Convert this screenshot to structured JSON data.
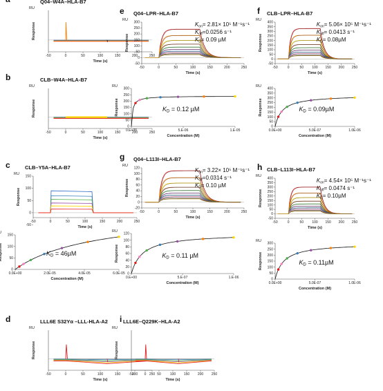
{
  "figure": {
    "panels": [
      {
        "id": "a",
        "label": "a",
        "title": "Q04–W4A–HLA-B7",
        "type": "sensorgram",
        "kind": "flat-spike",
        "x": [
          70,
          15,
          150,
          60
        ],
        "plot": [
          -50,
          0,
          250,
          0,
          -20,
          50
        ],
        "xticks": [
          -50,
          0,
          50,
          100,
          150,
          200,
          250
        ],
        "yticks": [],
        "xlabel": "Time (s)",
        "ylabel": "Response",
        "ru": "RU"
      },
      {
        "id": "b",
        "label": "b",
        "title": "CLB–W4A–HLA-B7",
        "type": "sensorgram",
        "kind": "flat",
        "x": [
          70,
          128,
          150,
          58
        ],
        "plot": [
          -50,
          0,
          250,
          0,
          -20,
          50
        ],
        "xticks": [
          -50,
          0,
          50,
          100,
          150,
          200,
          250
        ],
        "yticks": [],
        "xlabel": "Time (s)",
        "ylabel": "Response",
        "ru": "RU"
      },
      {
        "id": "c1",
        "label": "c",
        "title": "CLB–Y5A–HLA-B7",
        "type": "sensorgram",
        "kind": "blue-binding",
        "x": [
          48,
          255,
          150,
          60
        ],
        "plot": [
          -50,
          0,
          250,
          0,
          -20,
          150
        ],
        "xticks": [
          -50,
          0,
          50,
          100,
          150,
          200,
          250
        ],
        "yticks": [
          -50,
          0,
          50,
          100,
          150
        ],
        "xlabel": "Time (s)",
        "ylabel": "Response",
        "ru": "RU"
      },
      {
        "id": "c2",
        "type": "isotherm",
        "x": [
          22,
          340,
          150,
          50
        ],
        "plot": [
          0,
          0,
          6e-05,
          0,
          0,
          150
        ],
        "xticks": [
          0,
          2e-05,
          4e-05,
          6e-05
        ],
        "xticklabels": [
          "0.0E+00",
          "2.0E-05",
          "4.0E-05",
          "6.0E-05"
        ],
        "yticks": [
          0,
          50,
          100,
          150
        ],
        "kd_label": "K",
        "kd_sub": "D",
        "kd_text": "= 46µM",
        "kd_value": 4.6e-05,
        "rmax": 250,
        "xlabel": "Concentration (M)",
        "ylabel": "Response",
        "ru": "RU"
      },
      {
        "id": "d",
        "label": "d",
        "title": "LLL6E S32Yα –LLL-HLA-A2",
        "type": "sensorgram",
        "kind": "flat-red",
        "x": [
          70,
          478,
          150,
          58
        ],
        "plot": [
          -50,
          0,
          250,
          0,
          -20,
          50
        ],
        "xticks": [
          -50,
          0,
          50,
          100,
          150,
          200,
          250
        ],
        "yticks": [],
        "xlabel": "Time (s)",
        "ylabel": "Response",
        "ru": "RU"
      },
      {
        "id": "e1",
        "label": "e",
        "title": "Q04–LPR–HLA-B7",
        "type": "sensorgram",
        "kind": "family",
        "x": [
          205,
          32,
          148,
          60
        ],
        "plot": [
          -50,
          0,
          250,
          0,
          -50,
          300
        ],
        "xticks": [
          -50,
          0,
          50,
          100,
          150,
          200,
          250
        ],
        "yticks": [
          -50,
          0,
          50,
          100,
          150,
          200,
          250,
          300
        ],
        "max": 240,
        "xlabel": "Time (s)",
        "ylabel": "Response",
        "ru": "RU",
        "kon_label": "K",
        "kon_sub": "on",
        "kon": "= 2.81× 10⁵ M⁻¹s⁻¹",
        "koff_label": "K",
        "koff_sub": "off",
        "koff": "=0.0256 s⁻¹",
        "kd_label": "K",
        "kd_sub": "D",
        "kd": "= 0.09 µM"
      },
      {
        "id": "e2",
        "type": "isotherm",
        "x": [
          190,
          128,
          150,
          55
        ],
        "plot": [
          0,
          0,
          1e-05,
          0,
          0,
          300
        ],
        "xticks": [
          0,
          5e-06,
          1e-05
        ],
        "xticklabels": [
          "0.E+00",
          "5.E-06",
          "1.E-05"
        ],
        "yticks": [
          0,
          50,
          100,
          150,
          200,
          250,
          300
        ],
        "kd_label": "K",
        "kd_sub": "D",
        "kd_text": "= 0.12 µM",
        "kd_value": 1.2e-07,
        "rmax": 240,
        "xlabel": "Concentration (M)",
        "ylabel": "Response",
        "ru": "RU"
      },
      {
        "id": "f1",
        "label": "f",
        "title": "CLB–LPR–HLA-B7",
        "type": "sensorgram",
        "kind": "family",
        "x": [
          398,
          32,
          115,
          60
        ],
        "plot": [
          -50,
          0,
          250,
          0,
          -50,
          400
        ],
        "xticks": [
          -50,
          0,
          50,
          100,
          150,
          200,
          250
        ],
        "yticks": [
          -50,
          0,
          50,
          100,
          150,
          200,
          250,
          300,
          350,
          400
        ],
        "max": 330,
        "xlabel": "Time (s)",
        "ylabel": "Response",
        "ru": "RU",
        "kon_label": "K",
        "kon_sub": "on",
        "kon": "= 5.06× 10⁵ M⁻¹s⁻¹",
        "koff_label": "K",
        "koff_sub": "off",
        "koff": "= 0.0413 s⁻¹",
        "kd_label": "K",
        "kd_sub": "D",
        "kd": "= 0.08µM"
      },
      {
        "id": "f2",
        "type": "isotherm",
        "x": [
          398,
          128,
          115,
          55
        ],
        "plot": [
          0,
          0,
          1e-06,
          0,
          0,
          400
        ],
        "xticks": [
          0,
          5e-07,
          1e-06
        ],
        "xticklabels": [
          "0.0E+00",
          "5.0E-07",
          "1.0E-06"
        ],
        "yticks": [
          0,
          50,
          100,
          150,
          200,
          250,
          300,
          350,
          400
        ],
        "kd_label": "K",
        "kd_sub": "D",
        "kd_text": "= 0.09µM",
        "kd_value": 9e-08,
        "rmax": 330,
        "xlabel": "Concentration (M)",
        "ylabel": "Response",
        "ru": "RU"
      },
      {
        "id": "g1",
        "label": "g",
        "title": "Q04–L113I–HLA-B7",
        "type": "sensorgram",
        "kind": "family",
        "x": [
          205,
          243,
          148,
          58
        ],
        "plot": [
          -50,
          0,
          250,
          0,
          -20,
          120
        ],
        "xticks": [
          -50,
          0,
          50,
          100,
          150,
          200,
          250
        ],
        "yticks": [
          -20,
          0,
          20,
          40,
          60,
          80,
          100,
          120
        ],
        "max": 110,
        "xlabel": "Time (s)",
        "ylabel": "Response",
        "ru": "RU",
        "kon_label": "K",
        "kon_sub": "on",
        "kon": "= 3.22× 10⁵ M⁻¹s⁻¹",
        "koff_label": "K",
        "koff_sub": "off",
        "koff": "=0.0314 s⁻¹",
        "kd_label": "K",
        "kd_sub": "D",
        "kd": "= 0.10 µM"
      },
      {
        "id": "g2",
        "type": "isotherm",
        "x": [
          190,
          338,
          148,
          58
        ],
        "plot": [
          0,
          0,
          1e-06,
          0,
          0,
          120
        ],
        "xticks": [
          0,
          5e-07,
          1e-06
        ],
        "xticklabels": [
          "0.E+00",
          "5.E-07",
          "1.E-06"
        ],
        "yticks": [
          0,
          20,
          40,
          60,
          80,
          100,
          120
        ],
        "kd_label": "K",
        "kd_sub": "D",
        "kd_text": "= 0.11 µM",
        "kd_value": 1.1e-07,
        "rmax": 120,
        "xlabel": "Concentration (M)",
        "ylabel": "Response",
        "ru": "RU"
      },
      {
        "id": "h1",
        "label": "h",
        "title": "CLB–L113I–HLA-B7",
        "type": "sensorgram",
        "kind": "family",
        "x": [
          398,
          258,
          115,
          58
        ],
        "plot": [
          -50,
          0,
          250,
          0,
          -50,
          400
        ],
        "xticks": [
          -50,
          0,
          50,
          100,
          150,
          200,
          250
        ],
        "yticks": [
          -50,
          0,
          50,
          100,
          150,
          200,
          250,
          300,
          350,
          400
        ],
        "max": 300,
        "xlabel": "Time (s)",
        "ylabel": "Response",
        "ru": "RU",
        "kon_label": "K",
        "kon_sub": "on",
        "kon": "= 4.54× 10⁵ M⁻¹s⁻¹",
        "koff_label": "K",
        "koff_sub": "off",
        "koff": "= 0.0474 s⁻¹",
        "kd_label": "K",
        "kd_sub": "D",
        "kd": "= 0.10µM"
      },
      {
        "id": "h2",
        "type": "isotherm",
        "x": [
          398,
          352,
          115,
          52
        ],
        "plot": [
          0,
          0,
          1e-06,
          0,
          0,
          300
        ],
        "xticks": [
          0,
          5e-07,
          1e-06
        ],
        "xticklabels": [
          "0.0E+00",
          "5.0E-07",
          "1.0E-06"
        ],
        "yticks": [
          0,
          50,
          100,
          150,
          200,
          250,
          300
        ],
        "kd_label": "K",
        "kd_sub": "D",
        "kd_text": "= 0.11µM",
        "kd_value": 1.1e-07,
        "rmax": 300,
        "xlabel": "Concentration (M)",
        "ylabel": "Response",
        "ru": "RU"
      },
      {
        "id": "i",
        "label": "i",
        "title": "LLL6E–Q229K–HLA-A2",
        "type": "sensorgram",
        "kind": "flat-red",
        "x": [
          190,
          478,
          120,
          58
        ],
        "plot": [
          -50,
          0,
          250,
          0,
          -20,
          50
        ],
        "xticks": [
          -50,
          0,
          50,
          100,
          150,
          200,
          250
        ],
        "yticks": [],
        "xlabel": "Time (s)",
        "ylabel": "Response",
        "ru": "RU"
      }
    ]
  },
  "colors": {
    "black": "#111111",
    "series": [
      "#e41a1c",
      "#ff7f00",
      "#ffd700",
      "#a0522d",
      "#4daf4a",
      "#984ea3",
      "#377eb8",
      "#f781bf",
      "#999999",
      "#d4a017"
    ],
    "blue": "#2b6cc4",
    "dotColors": [
      "#e41a1c",
      "#f781bf",
      "#4daf4a",
      "#377eb8",
      "#984ea3",
      "#ff7f00",
      "#ffd700"
    ]
  }
}
